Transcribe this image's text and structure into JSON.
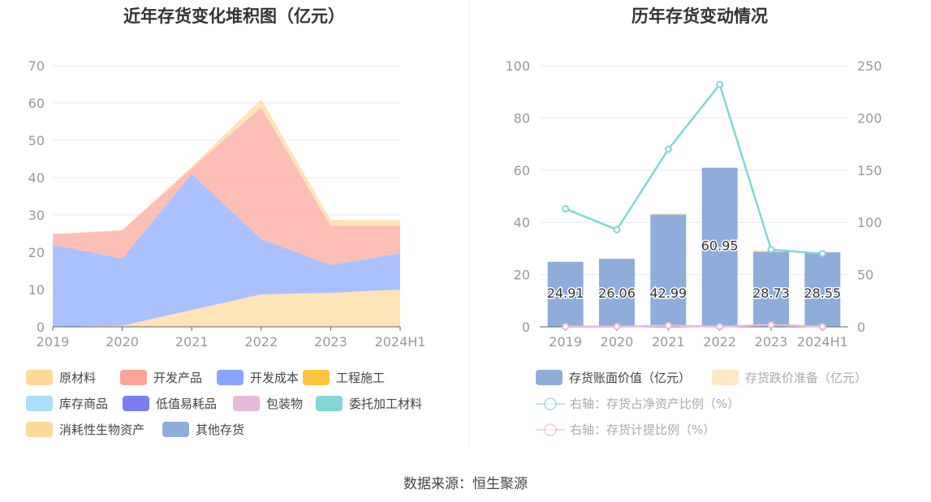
{
  "left_title": "近年存货变化堆积图（亿元）",
  "right_title": "历年存货变动情况",
  "source": "数据来源：恒生聚源",
  "chart_data": [
    {
      "type": "area",
      "title": "近年存货变化堆积图（亿元）",
      "stacked": true,
      "categories": [
        "2019",
        "2020",
        "2021",
        "2022",
        "2023",
        "2024H1"
      ],
      "ylim": [
        0,
        70
      ],
      "yticks": [
        "0",
        "10",
        "20",
        "30",
        "40",
        "50",
        "60",
        "70"
      ],
      "grid": true,
      "legend_position": "bottom",
      "legend": [
        "原材料",
        "开发产品",
        "开发成本",
        "工程施工",
        "库存商品",
        "低值易耗品",
        "包装物",
        "委托加工材料",
        "消耗性生物资产",
        "其他存货"
      ],
      "colors": [
        "#FFD99A",
        "#FCA397",
        "#88A6FF",
        "#FFC53D",
        "#A8E0FA",
        "#7A7EF2",
        "#E8BAD9",
        "#84D6D6",
        "#FFD99A",
        "#8EADDB"
      ],
      "series": [
        {
          "name": "原材料",
          "values": [
            0,
            0.3,
            4.5,
            8.7,
            9.1,
            10.0
          ]
        },
        {
          "name": "开发成本",
          "values": [
            22.0,
            18.0,
            36.5,
            14.8,
            7.5,
            9.7
          ]
        },
        {
          "name": "开发产品",
          "values": [
            2.8,
            7.5,
            1.5,
            35.3,
            10.4,
            7.3
          ]
        },
        {
          "name": "消耗性生物资产",
          "values": [
            0.1,
            0.2,
            0.5,
            2.2,
            1.7,
            1.6
          ]
        }
      ]
    },
    {
      "type": "bar",
      "title": "历年存货变动情况",
      "categories": [
        "2019",
        "2020",
        "2021",
        "2022",
        "2023",
        "2024H1"
      ],
      "ylim": [
        0,
        100
      ],
      "yticks": [
        "0",
        "20",
        "40",
        "60",
        "80",
        "100"
      ],
      "y2lim": [
        0,
        250
      ],
      "y2ticks": [
        "0",
        "50",
        "100",
        "150",
        "200",
        "250"
      ],
      "grid": true,
      "legend_position": "bottom",
      "series": [
        {
          "name": "存货账面价值（亿元）",
          "type": "bar",
          "color": "#8EADDB",
          "values": [
            24.91,
            26.06,
            42.99,
            60.95,
            28.73,
            28.55
          ],
          "labels": [
            "24.91",
            "26.06",
            "42.99",
            "60.95",
            "28.73",
            "28.55"
          ]
        },
        {
          "name": "存货跌价准备（亿元）",
          "type": "bar",
          "color": "#FFE8C2",
          "values": [
            0.05,
            0.05,
            0.5,
            0.1,
            0.6,
            0.05
          ]
        },
        {
          "name": "右轴：存货占净资产比例（%）",
          "type": "line",
          "axis": "right",
          "color": "#84D6D6",
          "values": [
            113,
            93,
            170,
            232,
            74,
            70
          ]
        },
        {
          "name": "右轴：存货计提比例（%）",
          "type": "line",
          "axis": "right",
          "color": "#E8BAD9",
          "values": [
            0.2,
            0.2,
            1.2,
            0.2,
            1.8,
            0.2
          ]
        }
      ]
    }
  ]
}
